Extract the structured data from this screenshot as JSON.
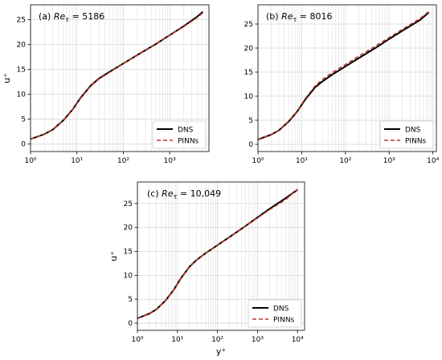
{
  "colors": {
    "dns": "#000000",
    "pinns": "#c0392b",
    "grid": "#d9d9d9"
  },
  "chart_data": [
    {
      "type": "line",
      "panel_label": "(a)  Re_τ = 5186",
      "xlabel": "",
      "ylabel": "u⁺",
      "xscale": "log",
      "xlim": [
        1,
        7000
      ],
      "ylim": [
        -1.5,
        28
      ],
      "xticks": [
        1,
        10,
        100,
        1000
      ],
      "xtick_labels": [
        "10⁰",
        "10¹",
        "10²",
        "10³"
      ],
      "yticks": [
        0,
        5,
        10,
        15,
        20,
        25
      ],
      "ytick_labels": [
        "0",
        "5",
        "10",
        "15",
        "20",
        "25"
      ],
      "grid": true,
      "legend_position": "lower-right",
      "series": [
        {
          "name": "DNS",
          "style": "solid",
          "x": [
            1,
            2,
            3,
            5,
            8,
            12,
            20,
            30,
            50,
            100,
            200,
            500,
            1000,
            2000,
            4000,
            5186
          ],
          "y": [
            1.0,
            2.0,
            2.9,
            4.7,
            6.9,
            9.3,
            11.8,
            13.2,
            14.5,
            16.2,
            17.9,
            20.1,
            21.9,
            23.7,
            25.7,
            26.6
          ]
        },
        {
          "name": "PINNs",
          "style": "dashed",
          "x": [
            1,
            2,
            3,
            5,
            8,
            12,
            20,
            30,
            50,
            100,
            200,
            500,
            1000,
            2000,
            4000,
            5186
          ],
          "y": [
            1.0,
            2.0,
            2.9,
            4.7,
            6.9,
            9.2,
            11.7,
            13.1,
            14.4,
            16.2,
            17.9,
            20.1,
            21.9,
            23.6,
            25.5,
            26.4
          ]
        }
      ]
    },
    {
      "type": "line",
      "panel_label": "(b)  Re_τ = 8016",
      "xlabel": "",
      "ylabel": "",
      "xscale": "log",
      "xlim": [
        1,
        12000
      ],
      "ylim": [
        -1.5,
        29
      ],
      "xticks": [
        1,
        10,
        100,
        1000,
        10000
      ],
      "xtick_labels": [
        "10⁰",
        "10¹",
        "10²",
        "10³",
        "10⁴"
      ],
      "yticks": [
        0,
        5,
        10,
        15,
        20,
        25
      ],
      "ytick_labels": [
        "0",
        "5",
        "10",
        "15",
        "20",
        "25"
      ],
      "grid": true,
      "legend_position": "lower-right",
      "series": [
        {
          "name": "DNS",
          "style": "solid",
          "x": [
            1,
            2,
            3,
            5,
            8,
            12,
            20,
            30,
            50,
            100,
            200,
            500,
            1000,
            2000,
            5000,
            8016
          ],
          "y": [
            1.0,
            2.0,
            2.9,
            4.7,
            6.9,
            9.3,
            11.8,
            13.1,
            14.5,
            16.2,
            17.9,
            20.1,
            21.9,
            23.6,
            25.8,
            27.4
          ]
        },
        {
          "name": "PINNs",
          "style": "dashed",
          "x": [
            1,
            2,
            3,
            5,
            8,
            12,
            20,
            30,
            50,
            100,
            200,
            500,
            1000,
            2000,
            5000,
            8016
          ],
          "y": [
            1.0,
            2.0,
            2.9,
            4.8,
            7.0,
            9.5,
            12.1,
            13.5,
            14.9,
            16.6,
            18.3,
            20.5,
            22.2,
            23.9,
            26.1,
            27.6
          ]
        }
      ]
    },
    {
      "type": "line",
      "panel_label": "(c) Re_τ = 10,049",
      "xlabel": "y⁺",
      "ylabel": "u⁺",
      "xscale": "log",
      "xlim": [
        1,
        15000
      ],
      "ylim": [
        -1.5,
        29.5
      ],
      "xticks": [
        1,
        10,
        100,
        1000,
        10000
      ],
      "xtick_labels": [
        "10⁰",
        "10¹",
        "10²",
        "10³",
        "10⁴"
      ],
      "yticks": [
        0,
        5,
        10,
        15,
        20,
        25
      ],
      "ytick_labels": [
        "0",
        "5",
        "10",
        "15",
        "20",
        "25"
      ],
      "grid": true,
      "legend_position": "lower-right",
      "series": [
        {
          "name": "DNS",
          "style": "solid",
          "x": [
            1,
            2,
            3,
            5,
            8,
            12,
            20,
            30,
            50,
            100,
            200,
            500,
            1000,
            2000,
            5000,
            10049
          ],
          "y": [
            1.0,
            2.0,
            2.9,
            4.7,
            6.9,
            9.3,
            11.8,
            13.2,
            14.6,
            16.3,
            18.0,
            20.3,
            22.1,
            23.9,
            26.1,
            27.9
          ]
        },
        {
          "name": "PINNs",
          "style": "dashed",
          "x": [
            1,
            2,
            3,
            5,
            8,
            12,
            20,
            30,
            50,
            100,
            200,
            500,
            1000,
            2000,
            5000,
            10049
          ],
          "y": [
            1.0,
            2.0,
            2.9,
            4.7,
            6.9,
            9.3,
            11.8,
            13.2,
            14.6,
            16.3,
            18.0,
            20.3,
            22.0,
            23.7,
            25.8,
            28.0
          ]
        }
      ]
    }
  ]
}
